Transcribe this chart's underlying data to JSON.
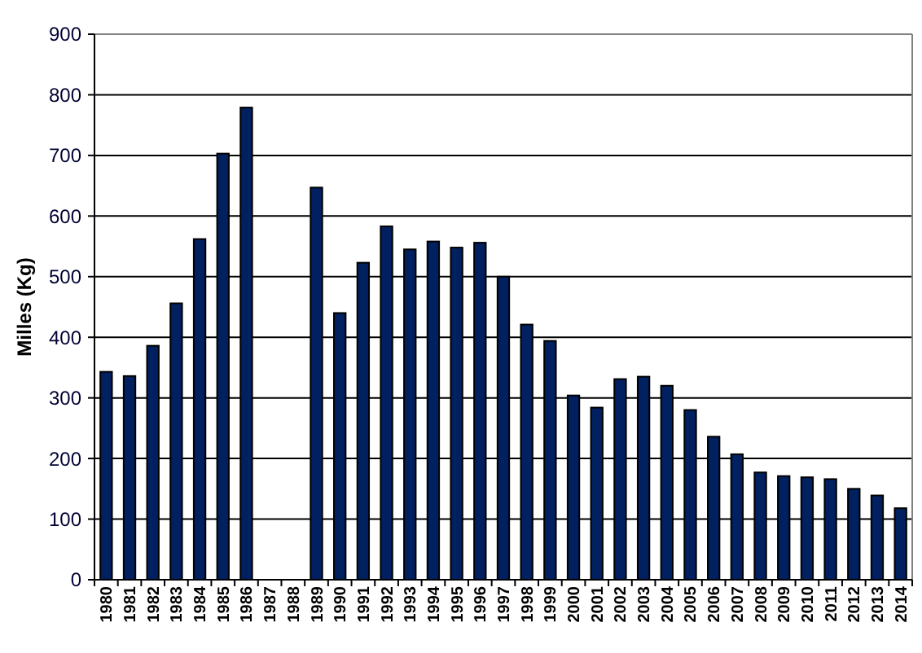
{
  "chart_data": {
    "type": "bar",
    "ylabel": "Milles (Kg)",
    "categories": [
      "1980",
      "1981",
      "1982",
      "1983",
      "1984",
      "1985",
      "1986",
      "1987",
      "1988",
      "1989",
      "1990",
      "1991",
      "1992",
      "1993",
      "1994",
      "1995",
      "1996",
      "1997",
      "1998",
      "1999",
      "2000",
      "2001",
      "2002",
      "2003",
      "2004",
      "2005",
      "2006",
      "2007",
      "2008",
      "2009",
      "2010",
      "2011",
      "2012",
      "2013",
      "2014"
    ],
    "values": [
      343,
      336,
      386,
      456,
      562,
      703,
      779,
      null,
      null,
      647,
      440,
      523,
      583,
      545,
      558,
      548,
      556,
      500,
      421,
      394,
      304,
      284,
      331,
      335,
      320,
      280,
      236,
      207,
      177,
      171,
      169,
      166,
      150,
      139,
      118
    ],
    "color": "#002060",
    "ylim": [
      0,
      900
    ],
    "yticks": [
      0,
      100,
      200,
      300,
      400,
      500,
      600,
      700,
      800,
      900
    ],
    "grid": "y"
  }
}
